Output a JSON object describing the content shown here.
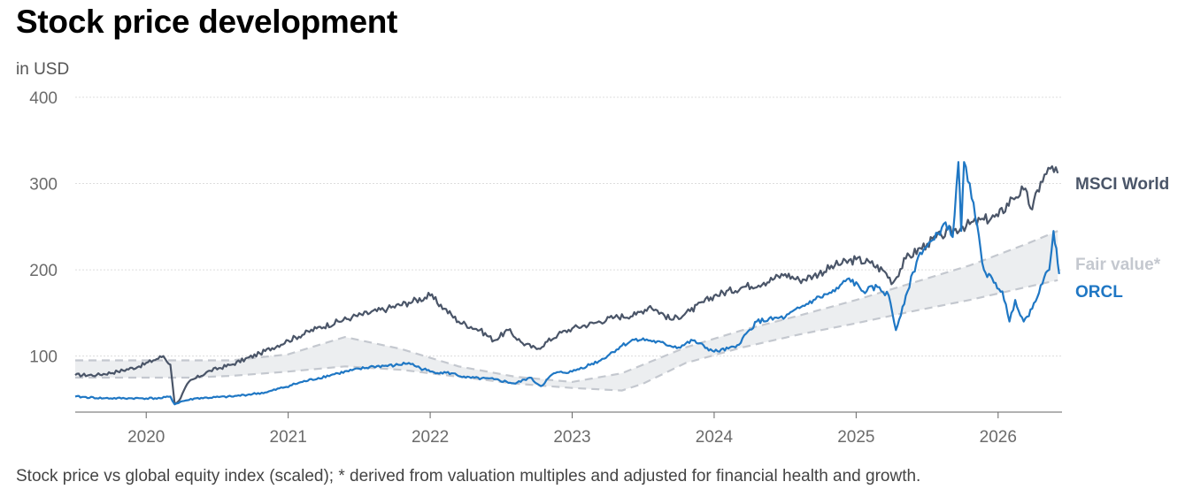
{
  "title": "Stock price development",
  "subtitle": "in USD",
  "footnote": "Stock price vs global equity index (scaled); * derived from valuation multiples and adjusted for financial health and growth.",
  "colors": {
    "msci": "#4a5568",
    "orcl": "#1f77c4",
    "fair": "#c4c8cf",
    "fair_fill": "#eceef0",
    "grid": "#dddddd"
  },
  "chart_data": {
    "type": "line",
    "title": "Stock price development",
    "ylabel": "in USD",
    "ylim": [
      35,
      400
    ],
    "xlim": [
      2019.5,
      2026.45
    ],
    "yticks": [
      100,
      200,
      300,
      400
    ],
    "ytick_labels": [
      "100",
      "200",
      "300",
      "400"
    ],
    "xticks": [
      2020,
      2021,
      2022,
      2023,
      2024,
      2025,
      2026
    ],
    "xtick_labels": [
      "2020",
      "2021",
      "2022",
      "2023",
      "2024",
      "2025",
      "2026"
    ],
    "grid": true,
    "legend": "end-of-line labels",
    "series": [
      {
        "name": "MSCI World",
        "key": "msci",
        "x": [
          2019.5,
          2019.65,
          2019.8,
          2019.95,
          2020.05,
          2020.12,
          2020.17,
          2020.2,
          2020.23,
          2020.3,
          2020.45,
          2020.6,
          2020.8,
          2021.0,
          2021.2,
          2021.45,
          2021.7,
          2021.85,
          2022.0,
          2022.1,
          2022.2,
          2022.35,
          2022.45,
          2022.55,
          2022.65,
          2022.75,
          2022.9,
          2023.0,
          2023.15,
          2023.3,
          2023.45,
          2023.55,
          2023.7,
          2023.83,
          2024.0,
          2024.2,
          2024.35,
          2024.5,
          2024.6,
          2024.7,
          2024.85,
          2025.0,
          2025.1,
          2025.2,
          2025.26,
          2025.35,
          2025.5,
          2025.6,
          2025.75,
          2025.9,
          2026.0,
          2026.1,
          2026.18,
          2026.24,
          2026.3,
          2026.38,
          2026.42
        ],
        "y": [
          78,
          78,
          82,
          88,
          95,
          100,
          90,
          45,
          48,
          70,
          83,
          90,
          103,
          118,
          132,
          145,
          155,
          162,
          170,
          155,
          140,
          130,
          118,
          130,
          115,
          108,
          125,
          132,
          138,
          145,
          148,
          158,
          142,
          152,
          170,
          180,
          185,
          195,
          188,
          193,
          205,
          212,
          208,
          198,
          185,
          213,
          230,
          240,
          250,
          258,
          262,
          283,
          293,
          270,
          302,
          320,
          312
        ],
        "end_label": "MSCI World"
      },
      {
        "name": "ORCL",
        "key": "orcl",
        "x": [
          2019.5,
          2019.7,
          2019.9,
          2020.1,
          2020.17,
          2020.2,
          2020.24,
          2020.35,
          2020.6,
          2020.85,
          2021.1,
          2021.35,
          2021.6,
          2021.75,
          2021.85,
          2021.93,
          2022.0,
          2022.15,
          2022.25,
          2022.45,
          2022.6,
          2022.7,
          2022.78,
          2022.87,
          2023.0,
          2023.2,
          2023.35,
          2023.45,
          2023.55,
          2023.75,
          2023.85,
          2024.0,
          2024.15,
          2024.3,
          2024.5,
          2024.7,
          2024.85,
          2024.95,
          2025.05,
          2025.15,
          2025.23,
          2025.28,
          2025.35,
          2025.45,
          2025.55,
          2025.63,
          2025.68,
          2025.72,
          2025.74,
          2025.76,
          2025.8,
          2025.84,
          2025.9,
          2025.97,
          2026.03,
          2026.08,
          2026.12,
          2026.18,
          2026.24,
          2026.3,
          2026.36,
          2026.39,
          2026.41,
          2026.43
        ],
        "y": [
          53,
          51,
          51,
          51,
          53,
          44,
          47,
          51,
          53,
          58,
          70,
          80,
          88,
          89,
          92,
          86,
          82,
          80,
          75,
          73,
          68,
          75,
          65,
          80,
          82,
          95,
          112,
          120,
          118,
          110,
          118,
          105,
          110,
          140,
          145,
          165,
          175,
          190,
          175,
          180,
          170,
          130,
          170,
          220,
          235,
          255,
          238,
          325,
          245,
          325,
          300,
          260,
          200,
          185,
          175,
          140,
          165,
          140,
          155,
          182,
          200,
          245,
          225,
          195
        ],
        "end_label": "ORCL"
      },
      {
        "name": "Fair value*",
        "key": "fair",
        "x": [
          2019.5,
          2019.8,
          2020.0,
          2020.3,
          2020.6,
          2021.0,
          2021.4,
          2021.8,
          2022.2,
          2022.6,
          2023.0,
          2023.35,
          2023.5,
          2023.8,
          2024.2,
          2024.6,
          2025.0,
          2025.4,
          2025.8,
          2026.2,
          2026.42
        ],
        "upper": [
          95,
          95,
          95,
          95,
          95,
          102,
          122,
          108,
          88,
          76,
          70,
          80,
          90,
          110,
          130,
          147,
          165,
          185,
          205,
          230,
          245
        ],
        "lower": [
          75,
          75,
          75,
          75,
          77,
          82,
          88,
          84,
          76,
          68,
          63,
          60,
          68,
          92,
          110,
          125,
          138,
          152,
          165,
          180,
          188
        ],
        "end_label": "Fair value*"
      }
    ]
  }
}
